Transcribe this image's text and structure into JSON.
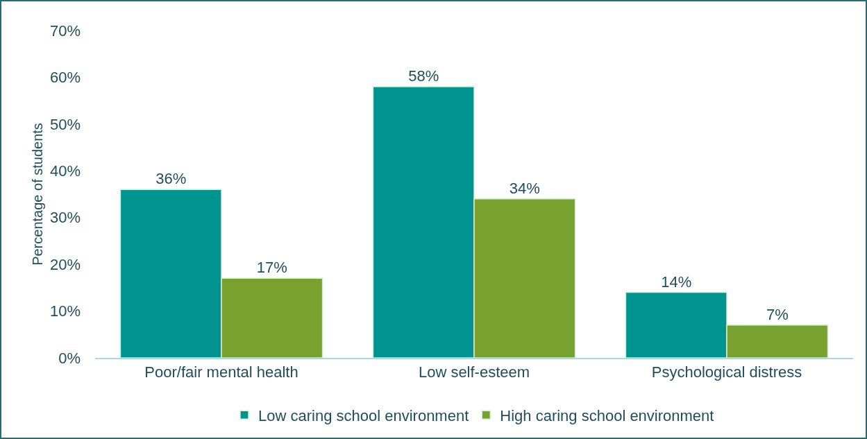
{
  "chart_data": {
    "type": "bar",
    "ylabel": "Percentage of students",
    "categories": [
      "Poor/fair mental health",
      "Low self-esteem",
      "Psychological distress"
    ],
    "series": [
      {
        "name": "Low caring school environment",
        "color": "#009490",
        "values": [
          36,
          58,
          14
        ],
        "value_labels": [
          "36%",
          "58%",
          "14%"
        ]
      },
      {
        "name": "High caring school environment",
        "color": "#78a22f",
        "values": [
          17,
          34,
          7
        ],
        "value_labels": [
          "17%",
          "34%",
          "7%"
        ]
      }
    ],
    "ylim": [
      0,
      70
    ],
    "yticks": [
      {
        "value": 0,
        "label": "0%"
      },
      {
        "value": 10,
        "label": "10%"
      },
      {
        "value": 20,
        "label": "20%"
      },
      {
        "value": 30,
        "label": "30%"
      },
      {
        "value": 40,
        "label": "40%"
      },
      {
        "value": 50,
        "label": "50%"
      },
      {
        "value": 60,
        "label": "60%"
      },
      {
        "value": 70,
        "label": "70%"
      }
    ],
    "grid": false,
    "legend": "bottom"
  }
}
